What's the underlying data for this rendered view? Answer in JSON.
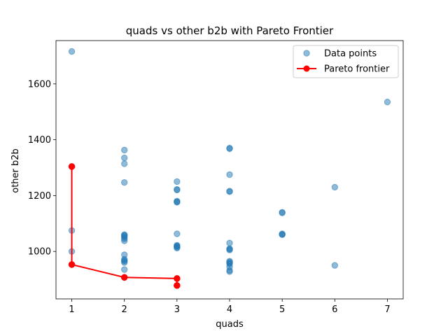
{
  "chart_data": {
    "type": "scatter",
    "title": "quads vs other b2b with Pareto Frontier",
    "xlabel": "quads",
    "ylabel": "other b2b",
    "xlim": [
      0.7,
      7.3
    ],
    "ylim": [
      830,
      1755
    ],
    "xticks": [
      1,
      2,
      3,
      4,
      5,
      6,
      7
    ],
    "yticks": [
      1000,
      1200,
      1400,
      1600
    ],
    "grid": false,
    "legend_position": "top-right",
    "series": [
      {
        "name": "Data points",
        "kind": "scatter",
        "color": "#1f77b4",
        "opacity": 0.5,
        "points": [
          [
            1,
            1716
          ],
          [
            1,
            1304
          ],
          [
            1,
            1075
          ],
          [
            1,
            1000
          ],
          [
            1,
            953
          ],
          [
            2,
            1363
          ],
          [
            2,
            1335
          ],
          [
            2,
            1314
          ],
          [
            2,
            1247
          ],
          [
            2,
            1060
          ],
          [
            2,
            1058
          ],
          [
            2,
            1055
          ],
          [
            2,
            1050
          ],
          [
            2,
            1045
          ],
          [
            2,
            1038
          ],
          [
            2,
            988
          ],
          [
            2,
            972
          ],
          [
            2,
            968
          ],
          [
            2,
            965
          ],
          [
            2,
            960
          ],
          [
            2,
            935
          ],
          [
            2,
            907
          ],
          [
            3,
            1250
          ],
          [
            3,
            1222
          ],
          [
            3,
            1220
          ],
          [
            3,
            1180
          ],
          [
            3,
            1178
          ],
          [
            3,
            1176
          ],
          [
            3,
            1063
          ],
          [
            3,
            1022
          ],
          [
            3,
            1020
          ],
          [
            3,
            1018
          ],
          [
            3,
            1015
          ],
          [
            3,
            1012
          ],
          [
            3,
            903
          ],
          [
            3,
            878
          ],
          [
            4,
            1370
          ],
          [
            4,
            1368
          ],
          [
            4,
            1275
          ],
          [
            4,
            1216
          ],
          [
            4,
            1214
          ],
          [
            4,
            1030
          ],
          [
            4,
            1010
          ],
          [
            4,
            1008
          ],
          [
            4,
            1005
          ],
          [
            4,
            965
          ],
          [
            4,
            962
          ],
          [
            4,
            958
          ],
          [
            4,
            955
          ],
          [
            4,
            945
          ],
          [
            4,
            932
          ],
          [
            4,
            928
          ],
          [
            5,
            1140
          ],
          [
            5,
            1138
          ],
          [
            5,
            1063
          ],
          [
            5,
            1061
          ],
          [
            5,
            1060
          ],
          [
            6,
            1230
          ],
          [
            6,
            950
          ],
          [
            7,
            1535
          ]
        ]
      },
      {
        "name": "Pareto frontier",
        "kind": "line",
        "color": "#ff0000",
        "points": [
          [
            1,
            1304
          ],
          [
            1,
            953
          ],
          [
            2,
            907
          ],
          [
            3,
            903
          ],
          [
            3,
            878
          ]
        ]
      }
    ]
  }
}
